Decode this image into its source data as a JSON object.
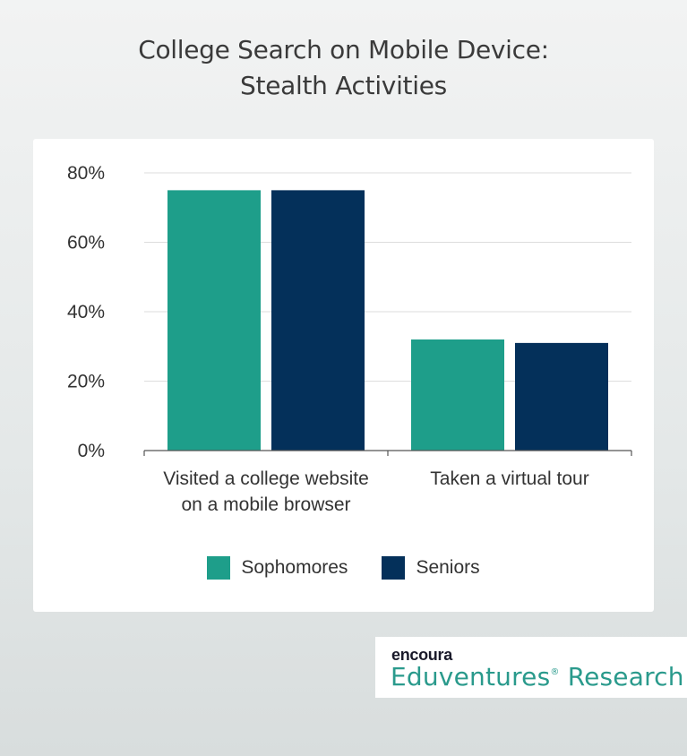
{
  "title_lines": [
    "College Search on Mobile Device:",
    "Stealth Activities"
  ],
  "colors": {
    "sophomores": "#1e9e8a",
    "seniors": "#04305a",
    "grid": "#dddddd",
    "axis": "#555555"
  },
  "chart_data": {
    "type": "bar",
    "title": "College Search on Mobile Device: Stealth Activities",
    "categories": [
      [
        "Visited a college website",
        "on a mobile browser"
      ],
      [
        "Taken a virtual tour"
      ]
    ],
    "series": [
      {
        "name": "Sophomores",
        "values": [
          75,
          32
        ]
      },
      {
        "name": "Seniors",
        "values": [
          75,
          31
        ]
      }
    ],
    "y_ticks": [
      "0%",
      "20%",
      "40%",
      "60%",
      "80%"
    ],
    "ylim": [
      0,
      80
    ],
    "grid": true,
    "legend_position": "bottom"
  },
  "brand": {
    "logo": "encoura",
    "name": "Eduventures",
    "mark": "®",
    "suffix": " Research"
  }
}
